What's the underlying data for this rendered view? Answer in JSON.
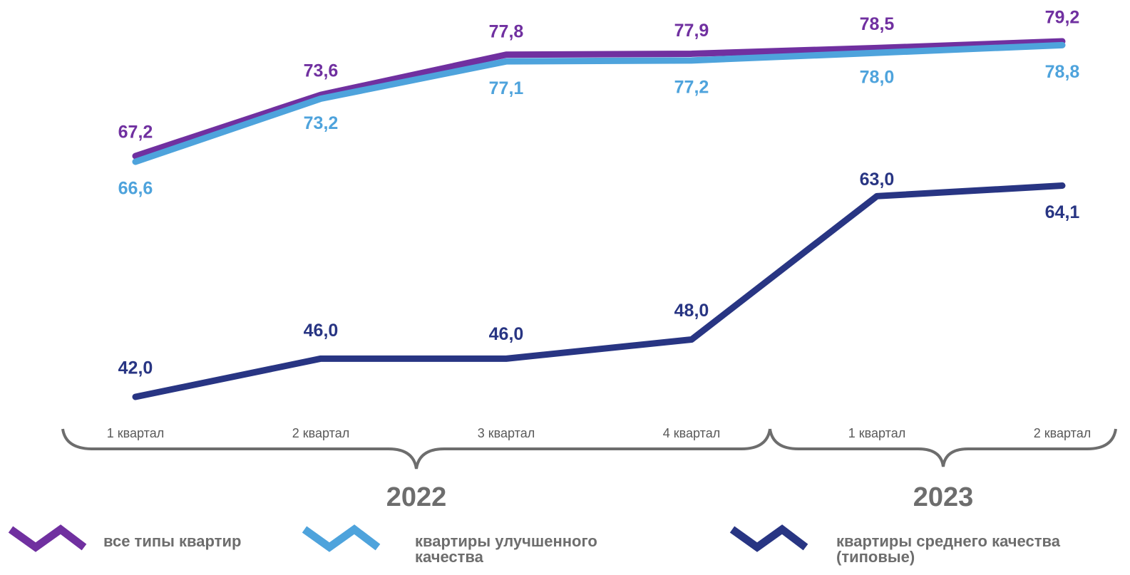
{
  "chart_data": {
    "type": "line",
    "categories": [
      "1 квартал",
      "2 квартал",
      "3 квартал",
      "4 квартал",
      "1 квартал",
      "2 квартал"
    ],
    "years": [
      "2022",
      "2023"
    ],
    "series": [
      {
        "name": "все типы квартир",
        "color": "#7030a0",
        "values": [
          67.2,
          73.6,
          77.8,
          77.9,
          78.5,
          79.2
        ],
        "value_labels": [
          "67,2",
          "73,6",
          "77,8",
          "77,9",
          "78,5",
          "79,2"
        ]
      },
      {
        "name": "квартиры улучшенного качества",
        "color": "#4ea3dc",
        "values": [
          66.6,
          73.2,
          77.1,
          77.2,
          78.0,
          78.8
        ],
        "value_labels": [
          "66,6",
          "73,2",
          "77,1",
          "77,2",
          "78,0",
          "78,8"
        ]
      },
      {
        "name": "квартиры среднего качества (типовые)",
        "color": "#283583",
        "values": [
          42.0,
          46.0,
          46.0,
          48.0,
          63.0,
          64.1
        ],
        "value_labels": [
          "42,0",
          "46,0",
          "46,0",
          "48,0",
          "63,0",
          "64,1"
        ]
      }
    ]
  }
}
